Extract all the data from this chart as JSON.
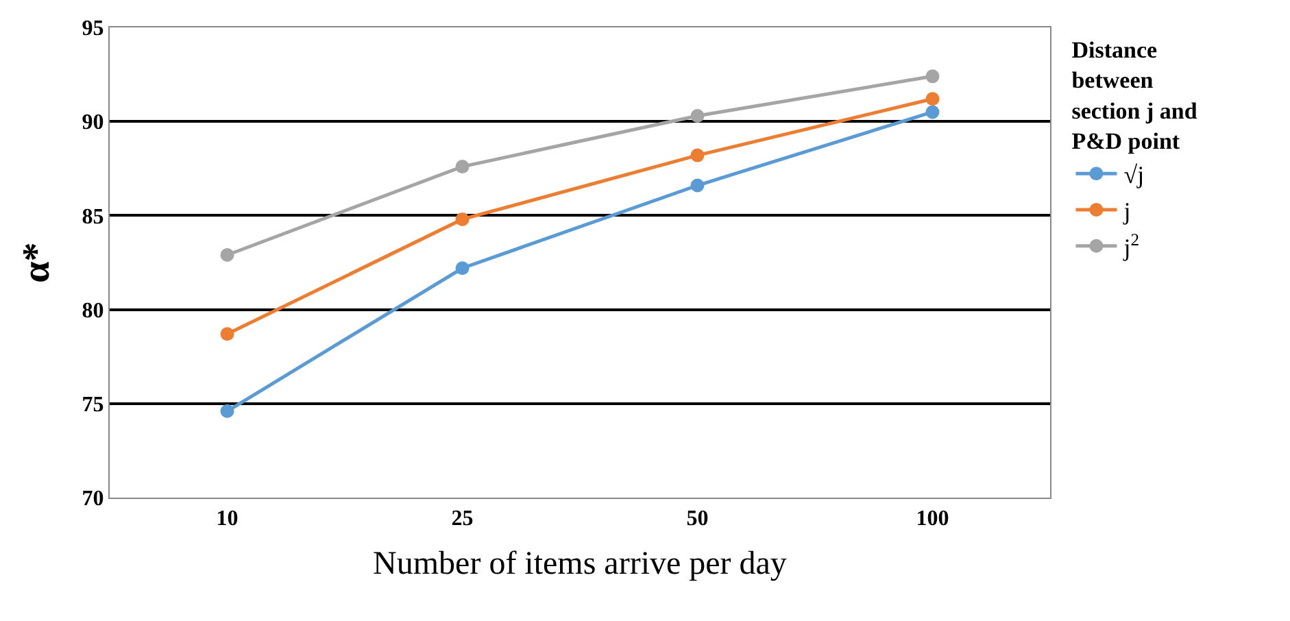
{
  "chart_data": {
    "type": "line",
    "xlabel": "Number of items arrive per day",
    "ylabel": "α*",
    "legend_title": "Distance between section j and P&D point",
    "categories": [
      "10",
      "25",
      "50",
      "100"
    ],
    "series": [
      {
        "name": "√j",
        "color": "#5b9bd5",
        "values": [
          74.6,
          82.2,
          86.6,
          90.5
        ]
      },
      {
        "name": "j",
        "color": "#ed7d31",
        "values": [
          78.7,
          84.8,
          88.2,
          91.2
        ]
      },
      {
        "name": "j$^{2}$",
        "color": "#a5a5a5",
        "values": [
          82.9,
          87.6,
          90.3,
          92.4
        ]
      }
    ],
    "ylim": [
      70,
      95
    ],
    "yticks": [
      70,
      75,
      80,
      85,
      90,
      95
    ],
    "grid": "y",
    "legend": "right",
    "marker": "circle",
    "line_style": "solid"
  }
}
